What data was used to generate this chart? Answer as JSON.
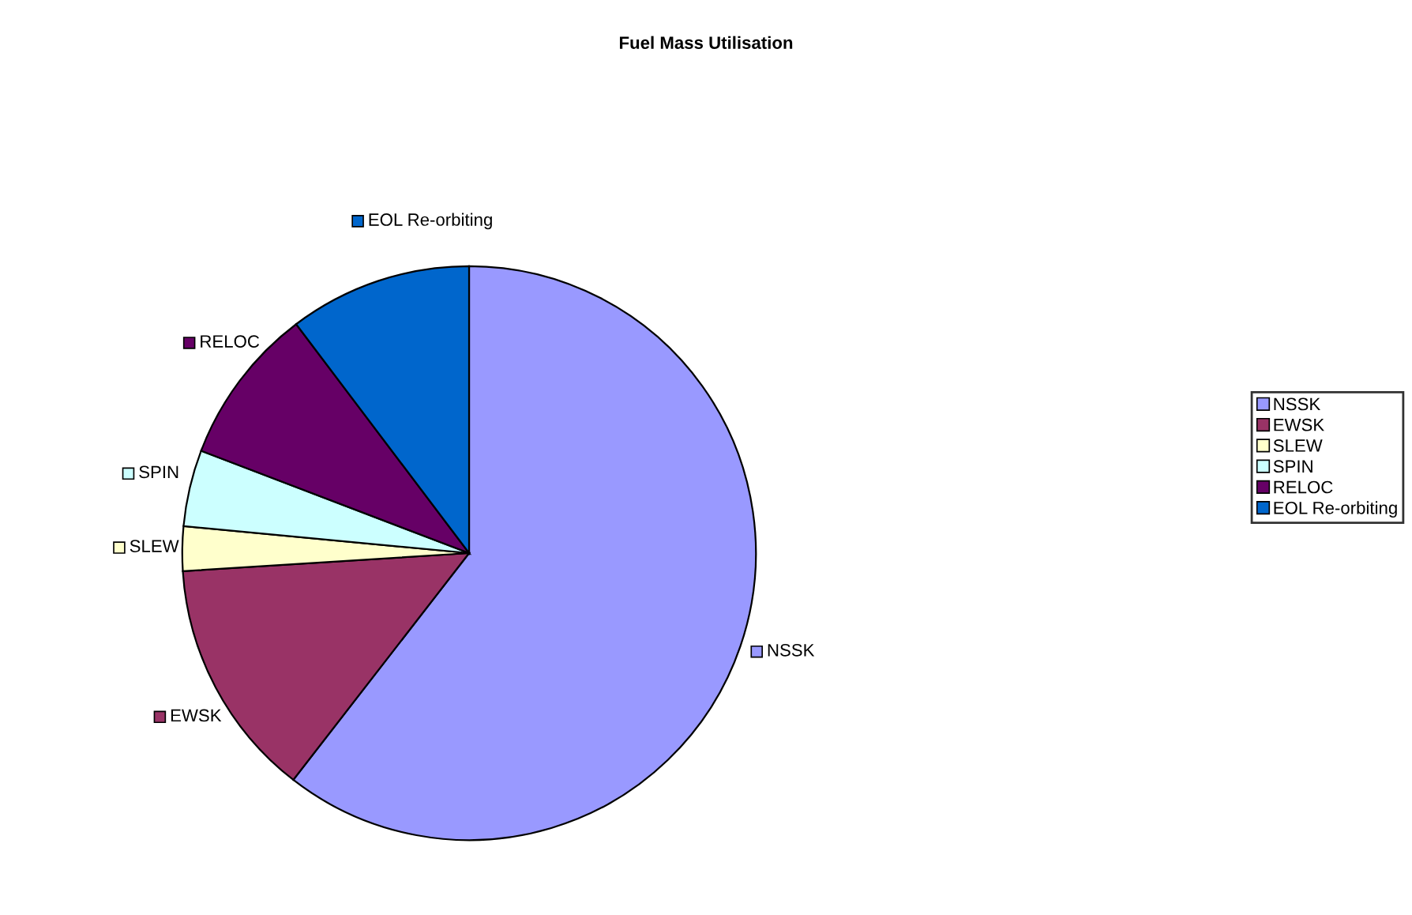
{
  "chart_data": {
    "type": "pie",
    "title": "Fuel Mass Utilisation",
    "categories": [
      "NSSK",
      "EWSK",
      "SLEW",
      "SPIN",
      "RELOC",
      "EOL Re-orbiting"
    ],
    "values": [
      60.5,
      13.5,
      2.5,
      4.3,
      8.9,
      10.3
    ],
    "colors": [
      "#9999ff",
      "#993366",
      "#ffffcc",
      "#ccffff",
      "#660066",
      "#0066cc"
    ],
    "legend": "right"
  }
}
